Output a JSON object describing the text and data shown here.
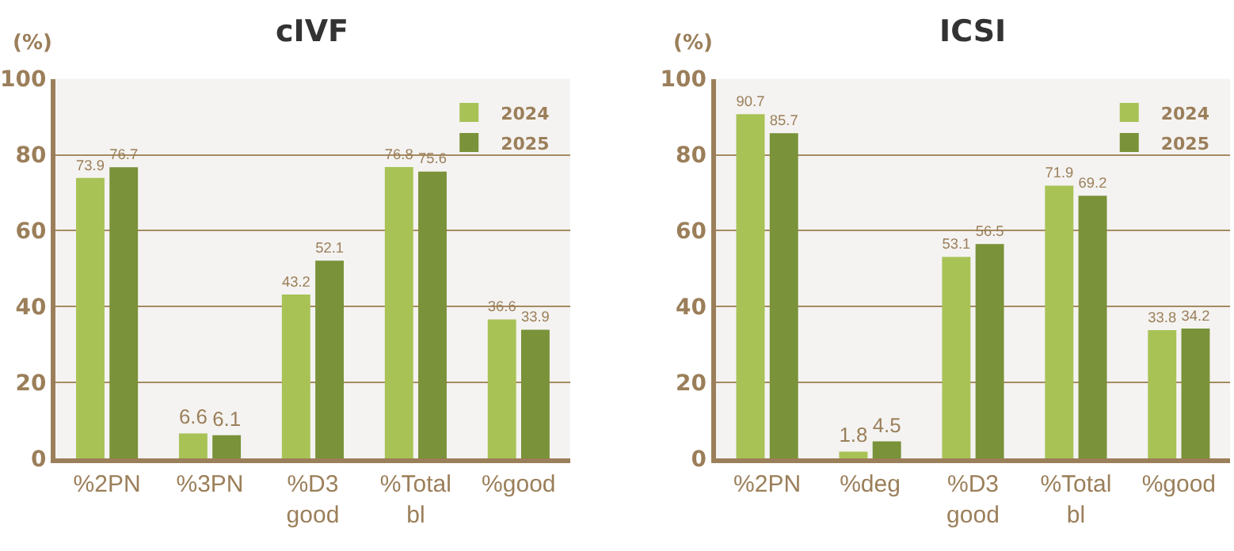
{
  "chart_data": [
    {
      "type": "bar",
      "title": "cIVF",
      "ylabel": "(%)",
      "categories": [
        "%2PN",
        "%3PN",
        "%D3\ngood",
        "%Total\nbl",
        "%good"
      ],
      "series": [
        {
          "name": "2024",
          "color": "#a8c256",
          "values": [
            73.9,
            6.6,
            43.2,
            76.8,
            36.6
          ]
        },
        {
          "name": "2025",
          "color": "#7a9239",
          "values": [
            76.7,
            6.1,
            52.1,
            75.6,
            33.9
          ]
        }
      ],
      "ylim": [
        0,
        100
      ],
      "yticks": [
        0,
        20,
        40,
        60,
        80,
        100
      ],
      "grid": "y",
      "legend": "top right",
      "data_labels": true
    },
    {
      "type": "bar",
      "title": "ICSI",
      "ylabel": "(%)",
      "categories": [
        "%2PN",
        "%deg",
        "%D3\ngood",
        "%Total\nbl",
        "%good"
      ],
      "series": [
        {
          "name": "2024",
          "color": "#a8c256",
          "values": [
            90.7,
            1.8,
            53.1,
            71.9,
            33.8
          ]
        },
        {
          "name": "2025",
          "color": "#7a9239",
          "values": [
            85.7,
            4.5,
            56.5,
            69.2,
            34.2
          ]
        }
      ],
      "ylim": [
        0,
        100
      ],
      "yticks": [
        0,
        20,
        40,
        60,
        80,
        100
      ],
      "grid": "y",
      "legend": "top right",
      "data_labels": true
    }
  ]
}
